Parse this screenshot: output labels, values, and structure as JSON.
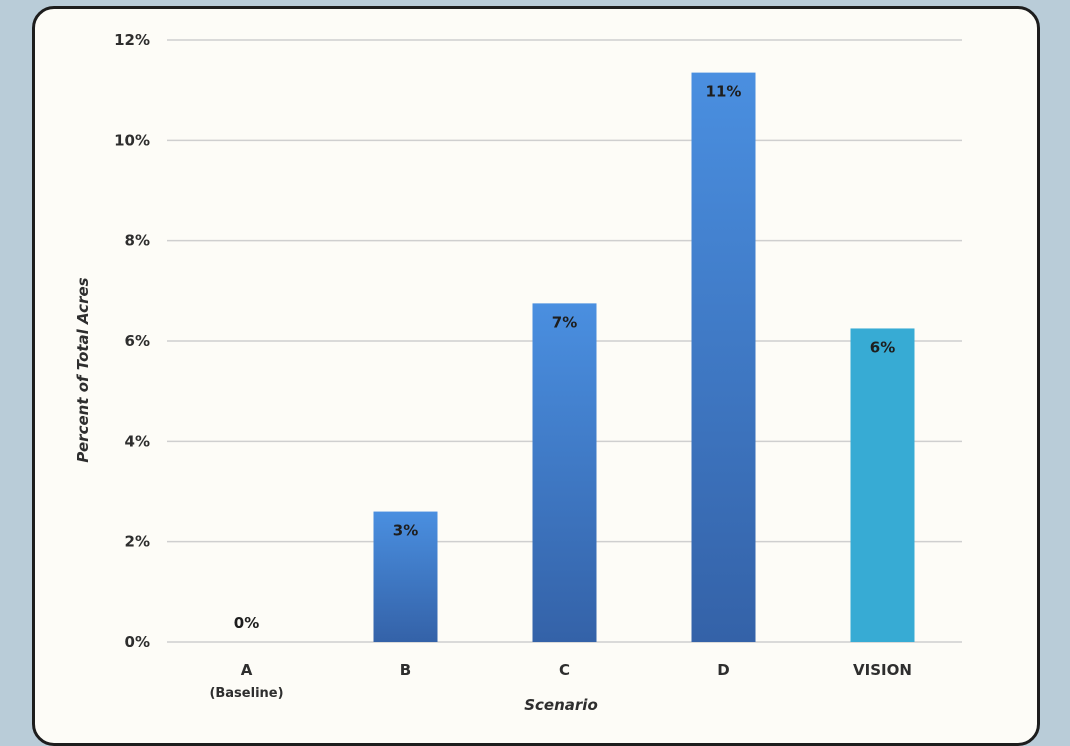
{
  "chart_data": {
    "type": "bar",
    "title": "",
    "xlabel": "Scenario",
    "ylabel": "Percent of Total Acres",
    "categories": [
      "A",
      "B",
      "C",
      "D",
      "VISION"
    ],
    "category_sublabels": [
      "(Baseline)",
      "",
      "",
      "",
      ""
    ],
    "values": [
      0,
      2.6,
      6.75,
      11.35,
      6.25
    ],
    "data_labels": [
      "0%",
      "3%",
      "7%",
      "11%",
      "6%"
    ],
    "ylim": [
      0,
      12
    ],
    "yticks": [
      0,
      2,
      4,
      6,
      8,
      10,
      12
    ],
    "ytick_labels": [
      "0%",
      "2%",
      "4%",
      "6%",
      "8%",
      "10%",
      "12%"
    ],
    "grid": true,
    "legend": "none",
    "colors": {
      "bar_top": "#4a8fe0",
      "bar_bottom": "#3462a8",
      "highlight_bar": "#37abd4",
      "grid": "#cfcfcf"
    }
  }
}
